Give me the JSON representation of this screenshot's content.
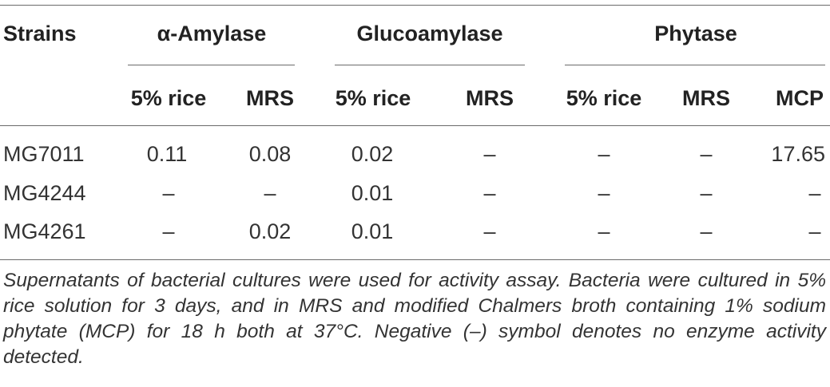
{
  "table": {
    "group_headers": {
      "strains": "Strains",
      "amylase": "α-Amylase",
      "glucoamylase": "Glucoamylase",
      "phytase": "Phytase"
    },
    "sub_headers": {
      "amylase_rice": "5% rice",
      "amylase_mrs": "MRS",
      "gluco_rice": "5% rice",
      "gluco_mrs": "MRS",
      "phytase_rice": "5% rice",
      "phytase_mrs": "MRS",
      "phytase_mcp": "MCP"
    },
    "rows": [
      {
        "strain": "MG7011",
        "amylase_rice": "0.11",
        "amylase_mrs": "0.08",
        "gluco_rice": "0.02",
        "gluco_mrs": "–",
        "phytase_rice": "–",
        "phytase_mrs": "–",
        "phytase_mcp": "17.65"
      },
      {
        "strain": "MG4244",
        "amylase_rice": "–",
        "amylase_mrs": "–",
        "gluco_rice": "0.01",
        "gluco_mrs": "–",
        "phytase_rice": "–",
        "phytase_mrs": "–",
        "phytase_mcp": "–"
      },
      {
        "strain": "MG4261",
        "amylase_rice": "–",
        "amylase_mrs": "0.02",
        "gluco_rice": "0.01",
        "gluco_mrs": "–",
        "phytase_rice": "–",
        "phytase_mrs": "–",
        "phytase_mcp": "–"
      }
    ],
    "footnote": "Supernatants of bacterial cultures were used for activity assay. Bacteria were cultured in 5% rice solution for 3 days, and in MRS and modified Chalmers broth containing 1% sodium phytate (MCP) for 18 h both at 37°C. Negative (–) symbol denotes no enzyme activity detected."
  }
}
